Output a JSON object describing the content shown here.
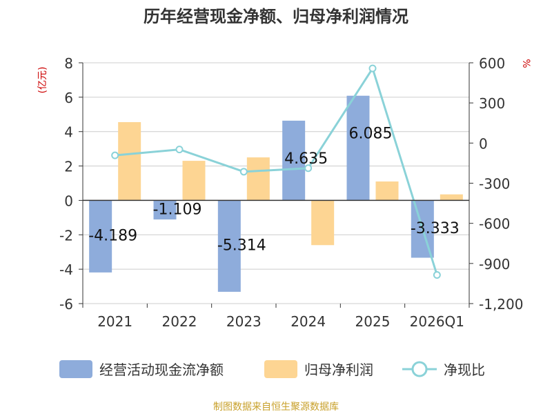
{
  "chart_data": {
    "type": "bar",
    "title": "历年经营现金净额、归母净利润情况",
    "ylabel_left": "(亿元)",
    "ylabel_right": "%",
    "categories": [
      "2021",
      "2022",
      "2023",
      "2024",
      "2025",
      "2026Q1"
    ],
    "ylim_left": [
      -6,
      8
    ],
    "yticks_left": [
      "-6",
      "-4",
      "-2",
      "0",
      "2",
      "4",
      "6",
      "8"
    ],
    "ylim_right": [
      -1200,
      600
    ],
    "yticks_right": [
      "-1,200",
      "-900",
      "-600",
      "-300",
      "0",
      "300",
      "600"
    ],
    "series": [
      {
        "name": "经营活动现金流净额",
        "type": "bar",
        "axis": "left",
        "color": "#8eacdb",
        "values": [
          -4.189,
          -1.109,
          -5.314,
          4.635,
          6.085,
          -3.333
        ],
        "labels": [
          "-4.189",
          "-1.109",
          "-5.314",
          "4.635",
          "6.085",
          "-3.333"
        ]
      },
      {
        "name": "归母净利润",
        "type": "bar",
        "axis": "left",
        "color": "#fdd593",
        "values": [
          4.55,
          2.3,
          2.5,
          -2.6,
          1.1,
          0.35
        ]
      },
      {
        "name": "净现比",
        "type": "line",
        "axis": "right",
        "color": "#8ad2d8",
        "values": [
          -92,
          -48,
          -214,
          -188,
          558,
          -986
        ]
      }
    ],
    "grid": true,
    "legend_position": "bottom"
  },
  "footer": {
    "source": "制图数据来自恒生聚源数据库"
  }
}
